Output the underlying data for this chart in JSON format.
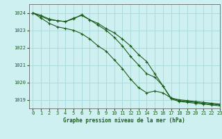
{
  "title": "Graphe pression niveau de la mer (hPa)",
  "bg_color": "#cff0f0",
  "line_color": "#1a5c1a",
  "grid_color": "#a8d8d8",
  "border_color": "#666666",
  "xlim": [
    -0.5,
    23
  ],
  "ylim": [
    1018.5,
    1024.5
  ],
  "yticks": [
    1019,
    1020,
    1021,
    1022,
    1023,
    1024
  ],
  "xticks": [
    0,
    1,
    2,
    3,
    4,
    5,
    6,
    7,
    8,
    9,
    10,
    11,
    12,
    13,
    14,
    15,
    16,
    17,
    18,
    19,
    20,
    21,
    22,
    23
  ],
  "series": [
    [
      1024.0,
      1023.8,
      1023.6,
      1023.55,
      1023.5,
      1023.7,
      1023.85,
      1023.6,
      1023.4,
      1023.1,
      1022.85,
      1022.5,
      1022.1,
      1021.6,
      1021.2,
      1020.5,
      1019.8,
      1019.1,
      1019.0,
      1018.95,
      1018.9,
      1018.85,
      1018.8,
      1018.75
    ],
    [
      1024.0,
      1023.7,
      1023.4,
      1023.2,
      1023.1,
      1023.0,
      1022.8,
      1022.5,
      1022.1,
      1021.8,
      1021.3,
      1020.8,
      1020.2,
      1019.7,
      1019.4,
      1019.5,
      1019.4,
      1019.1,
      1018.95,
      1018.9,
      1018.85,
      1018.8,
      1018.75,
      1018.7
    ],
    [
      1024.0,
      1023.85,
      1023.65,
      1023.55,
      1023.5,
      1023.65,
      1023.9,
      1023.6,
      1023.3,
      1023.0,
      1022.6,
      1022.1,
      1021.5,
      1021.0,
      1020.5,
      1020.3,
      1019.8,
      1019.05,
      1018.9,
      1018.85,
      1018.8,
      1018.75,
      1018.7,
      1018.65
    ]
  ]
}
